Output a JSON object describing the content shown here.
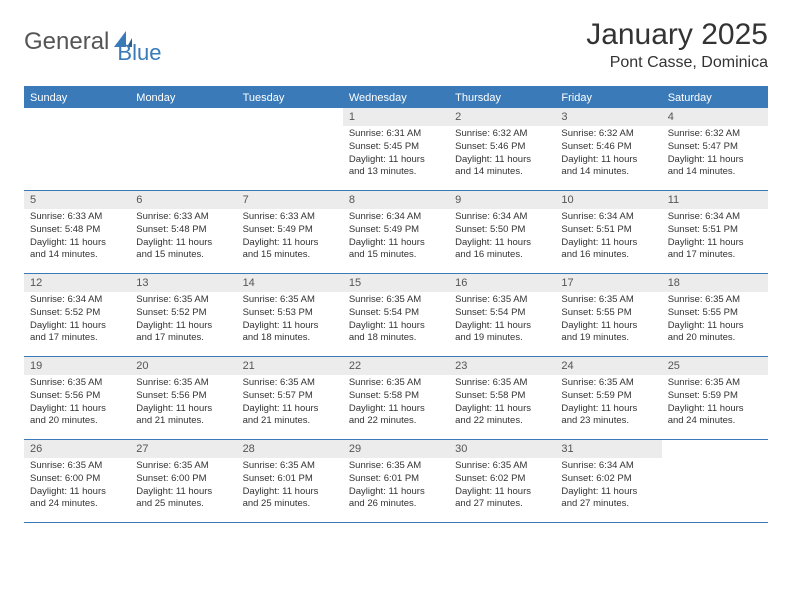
{
  "logo": {
    "text1": "General",
    "text2": "Blue"
  },
  "title": "January 2025",
  "location": "Pont Casse, Dominica",
  "colors": {
    "accent": "#3a7ab8",
    "header_bg": "#3a7ab8",
    "header_text": "#ffffff",
    "daynum_bg": "#ececec",
    "text": "#333333",
    "logo_gray": "#555555"
  },
  "day_names": [
    "Sunday",
    "Monday",
    "Tuesday",
    "Wednesday",
    "Thursday",
    "Friday",
    "Saturday"
  ],
  "weeks": [
    [
      {
        "empty": true
      },
      {
        "empty": true
      },
      {
        "empty": true
      },
      {
        "num": "1",
        "sunrise": "6:31 AM",
        "sunset": "5:45 PM",
        "daylight": "11 hours and 13 minutes."
      },
      {
        "num": "2",
        "sunrise": "6:32 AM",
        "sunset": "5:46 PM",
        "daylight": "11 hours and 14 minutes."
      },
      {
        "num": "3",
        "sunrise": "6:32 AM",
        "sunset": "5:46 PM",
        "daylight": "11 hours and 14 minutes."
      },
      {
        "num": "4",
        "sunrise": "6:32 AM",
        "sunset": "5:47 PM",
        "daylight": "11 hours and 14 minutes."
      }
    ],
    [
      {
        "num": "5",
        "sunrise": "6:33 AM",
        "sunset": "5:48 PM",
        "daylight": "11 hours and 14 minutes."
      },
      {
        "num": "6",
        "sunrise": "6:33 AM",
        "sunset": "5:48 PM",
        "daylight": "11 hours and 15 minutes."
      },
      {
        "num": "7",
        "sunrise": "6:33 AM",
        "sunset": "5:49 PM",
        "daylight": "11 hours and 15 minutes."
      },
      {
        "num": "8",
        "sunrise": "6:34 AM",
        "sunset": "5:49 PM",
        "daylight": "11 hours and 15 minutes."
      },
      {
        "num": "9",
        "sunrise": "6:34 AM",
        "sunset": "5:50 PM",
        "daylight": "11 hours and 16 minutes."
      },
      {
        "num": "10",
        "sunrise": "6:34 AM",
        "sunset": "5:51 PM",
        "daylight": "11 hours and 16 minutes."
      },
      {
        "num": "11",
        "sunrise": "6:34 AM",
        "sunset": "5:51 PM",
        "daylight": "11 hours and 17 minutes."
      }
    ],
    [
      {
        "num": "12",
        "sunrise": "6:34 AM",
        "sunset": "5:52 PM",
        "daylight": "11 hours and 17 minutes."
      },
      {
        "num": "13",
        "sunrise": "6:35 AM",
        "sunset": "5:52 PM",
        "daylight": "11 hours and 17 minutes."
      },
      {
        "num": "14",
        "sunrise": "6:35 AM",
        "sunset": "5:53 PM",
        "daylight": "11 hours and 18 minutes."
      },
      {
        "num": "15",
        "sunrise": "6:35 AM",
        "sunset": "5:54 PM",
        "daylight": "11 hours and 18 minutes."
      },
      {
        "num": "16",
        "sunrise": "6:35 AM",
        "sunset": "5:54 PM",
        "daylight": "11 hours and 19 minutes."
      },
      {
        "num": "17",
        "sunrise": "6:35 AM",
        "sunset": "5:55 PM",
        "daylight": "11 hours and 19 minutes."
      },
      {
        "num": "18",
        "sunrise": "6:35 AM",
        "sunset": "5:55 PM",
        "daylight": "11 hours and 20 minutes."
      }
    ],
    [
      {
        "num": "19",
        "sunrise": "6:35 AM",
        "sunset": "5:56 PM",
        "daylight": "11 hours and 20 minutes."
      },
      {
        "num": "20",
        "sunrise": "6:35 AM",
        "sunset": "5:56 PM",
        "daylight": "11 hours and 21 minutes."
      },
      {
        "num": "21",
        "sunrise": "6:35 AM",
        "sunset": "5:57 PM",
        "daylight": "11 hours and 21 minutes."
      },
      {
        "num": "22",
        "sunrise": "6:35 AM",
        "sunset": "5:58 PM",
        "daylight": "11 hours and 22 minutes."
      },
      {
        "num": "23",
        "sunrise": "6:35 AM",
        "sunset": "5:58 PM",
        "daylight": "11 hours and 22 minutes."
      },
      {
        "num": "24",
        "sunrise": "6:35 AM",
        "sunset": "5:59 PM",
        "daylight": "11 hours and 23 minutes."
      },
      {
        "num": "25",
        "sunrise": "6:35 AM",
        "sunset": "5:59 PM",
        "daylight": "11 hours and 24 minutes."
      }
    ],
    [
      {
        "num": "26",
        "sunrise": "6:35 AM",
        "sunset": "6:00 PM",
        "daylight": "11 hours and 24 minutes."
      },
      {
        "num": "27",
        "sunrise": "6:35 AM",
        "sunset": "6:00 PM",
        "daylight": "11 hours and 25 minutes."
      },
      {
        "num": "28",
        "sunrise": "6:35 AM",
        "sunset": "6:01 PM",
        "daylight": "11 hours and 25 minutes."
      },
      {
        "num": "29",
        "sunrise": "6:35 AM",
        "sunset": "6:01 PM",
        "daylight": "11 hours and 26 minutes."
      },
      {
        "num": "30",
        "sunrise": "6:35 AM",
        "sunset": "6:02 PM",
        "daylight": "11 hours and 27 minutes."
      },
      {
        "num": "31",
        "sunrise": "6:34 AM",
        "sunset": "6:02 PM",
        "daylight": "11 hours and 27 minutes."
      },
      {
        "empty": true
      }
    ]
  ],
  "labels": {
    "sunrise": "Sunrise:",
    "sunset": "Sunset:",
    "daylight": "Daylight:"
  }
}
